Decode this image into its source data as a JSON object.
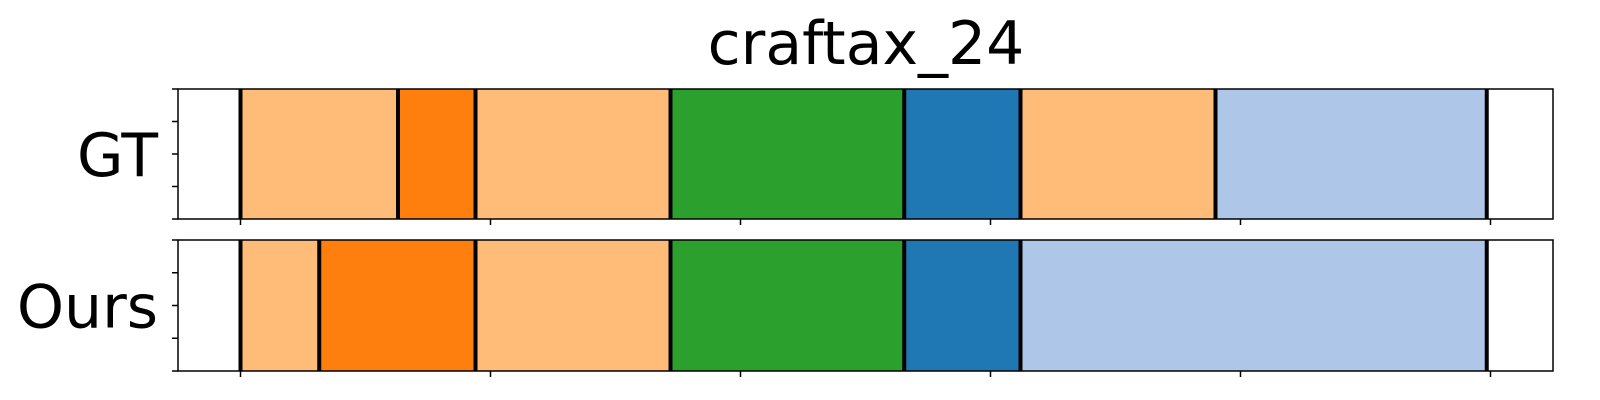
{
  "chart_data": {
    "type": "segmentation-timeline",
    "title": "craftax_24",
    "x_range": [
      0,
      1100
    ],
    "colors": {
      "light-orange": "#ffbb78",
      "orange": "#ff7f0e",
      "green": "#2ca02c",
      "blue": "#1f77b4",
      "light-blue": "#aec7e8"
    },
    "rows": [
      {
        "label": "GT",
        "segments": [
          {
            "start": 50,
            "end": 176,
            "color": "light-orange"
          },
          {
            "start": 176,
            "end": 238,
            "color": "orange"
          },
          {
            "start": 238,
            "end": 394,
            "color": "light-orange"
          },
          {
            "start": 394,
            "end": 581,
            "color": "green"
          },
          {
            "start": 581,
            "end": 674,
            "color": "blue"
          },
          {
            "start": 674,
            "end": 830,
            "color": "light-orange"
          },
          {
            "start": 830,
            "end": 1047,
            "color": "light-blue"
          }
        ]
      },
      {
        "label": "Ours",
        "segments": [
          {
            "start": 50,
            "end": 113,
            "color": "light-orange"
          },
          {
            "start": 113,
            "end": 238,
            "color": "orange"
          },
          {
            "start": 238,
            "end": 394,
            "color": "light-orange"
          },
          {
            "start": 394,
            "end": 581,
            "color": "green"
          },
          {
            "start": 581,
            "end": 674,
            "color": "blue"
          },
          {
            "start": 674,
            "end": 1047,
            "color": "light-blue"
          }
        ]
      }
    ],
    "x_ticks": [
      50,
      250,
      450,
      650,
      850,
      1050
    ],
    "x_tick_labels_shown": false,
    "y_tick_count": 5,
    "boundary_color": "#000000"
  }
}
